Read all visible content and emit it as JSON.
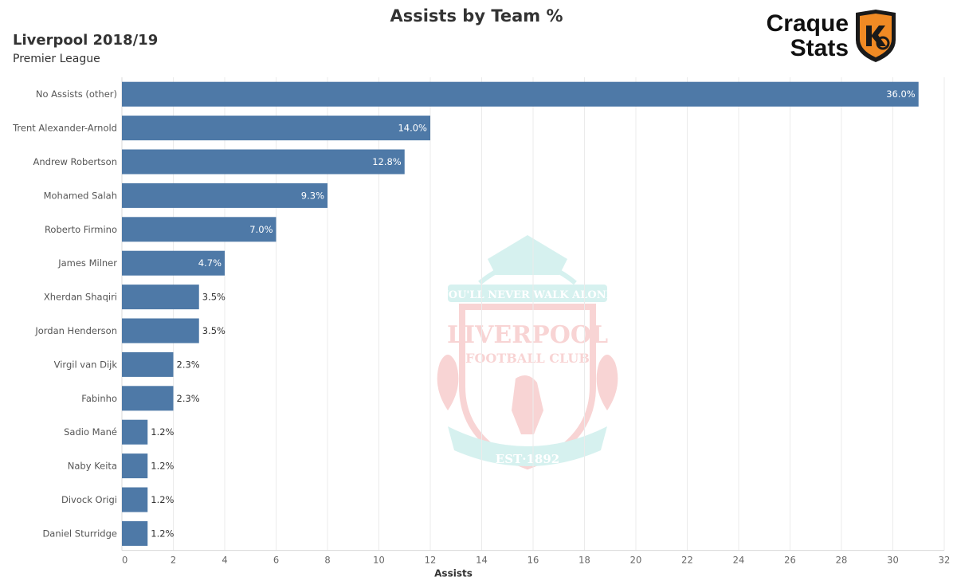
{
  "header": {
    "title": "Assists by Team %",
    "team": "Liverpool 2018/19",
    "league": "Premier League"
  },
  "brand": {
    "line1": "Craque",
    "line2": "Stats",
    "badge_color": "#f08a24"
  },
  "watermark": {
    "motto": "YOU'LL NEVER WALK ALONE",
    "name": "LIVERPOOL",
    "club": "FOOTBALL CLUB",
    "est": "EST·1892"
  },
  "chart_data": {
    "type": "bar",
    "orientation": "horizontal",
    "categories": [
      "No Assists (other)",
      "Trent Alexander-Arnold",
      "Andrew Robertson",
      "Mohamed Salah",
      "Roberto Firmino",
      "James Milner",
      "Xherdan Shaqiri",
      "Jordan Henderson",
      "Virgil van Dijk",
      "Fabinho",
      "Sadio Mané",
      "Naby Keita",
      "Divock Origi",
      "Daniel Sturridge"
    ],
    "values": [
      31,
      12,
      11,
      8,
      6,
      4,
      3,
      3,
      2,
      2,
      1,
      1,
      1,
      1
    ],
    "labels": [
      "36.0%",
      "14.0%",
      "12.8%",
      "9.3%",
      "7.0%",
      "4.7%",
      "3.5%",
      "3.5%",
      "2.3%",
      "2.3%",
      "1.2%",
      "1.2%",
      "1.2%",
      "1.2%"
    ],
    "xlabel": "Assists",
    "ylabel": "",
    "xlim": [
      0,
      32
    ],
    "xticks": [
      0,
      2,
      4,
      6,
      8,
      10,
      12,
      14,
      16,
      18,
      20,
      22,
      24,
      26,
      28,
      30,
      32
    ],
    "bar_color": "#4e79a7",
    "grid": true
  }
}
